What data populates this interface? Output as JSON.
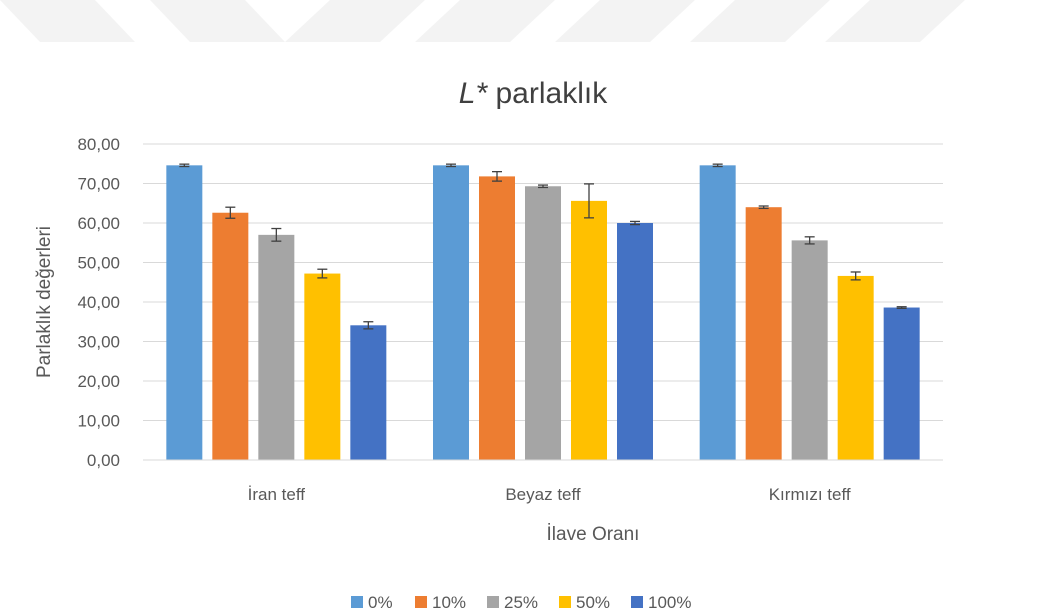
{
  "chart_data": {
    "type": "bar",
    "title_italic": "L*",
    "title_rest": " parlaklık",
    "xlabel": "İlave Oranı",
    "ylabel": "Parlaklık değerleri",
    "ylim": [
      0,
      80
    ],
    "yticks": [
      "0,00",
      "10,00",
      "20,00",
      "30,00",
      "40,00",
      "50,00",
      "60,00",
      "70,00",
      "80,00"
    ],
    "categories": [
      "İran teff",
      "Beyaz teff",
      "Kırmızı teff"
    ],
    "series": [
      {
        "name": "0%",
        "color": "#5B9BD5",
        "values": [
          74.6,
          74.6,
          74.6
        ],
        "errors": [
          0.3,
          0.3,
          0.3
        ]
      },
      {
        "name": "10%",
        "color": "#ED7D31",
        "values": [
          62.6,
          71.8,
          64.0
        ],
        "errors": [
          1.4,
          1.2,
          0.3
        ]
      },
      {
        "name": "25%",
        "color": "#A5A5A5",
        "values": [
          57.0,
          69.3,
          55.6
        ],
        "errors": [
          1.6,
          0.3,
          0.9
        ]
      },
      {
        "name": "50%",
        "color": "#FFC000",
        "values": [
          47.2,
          65.6,
          46.6
        ],
        "errors": [
          1.1,
          4.3,
          1.0
        ]
      },
      {
        "name": "100%",
        "color": "#4472C4",
        "values": [
          34.1,
          60.0,
          38.6
        ],
        "errors": [
          0.9,
          0.4,
          0.2
        ]
      }
    ],
    "grid": true,
    "legend_position": "bottom"
  }
}
